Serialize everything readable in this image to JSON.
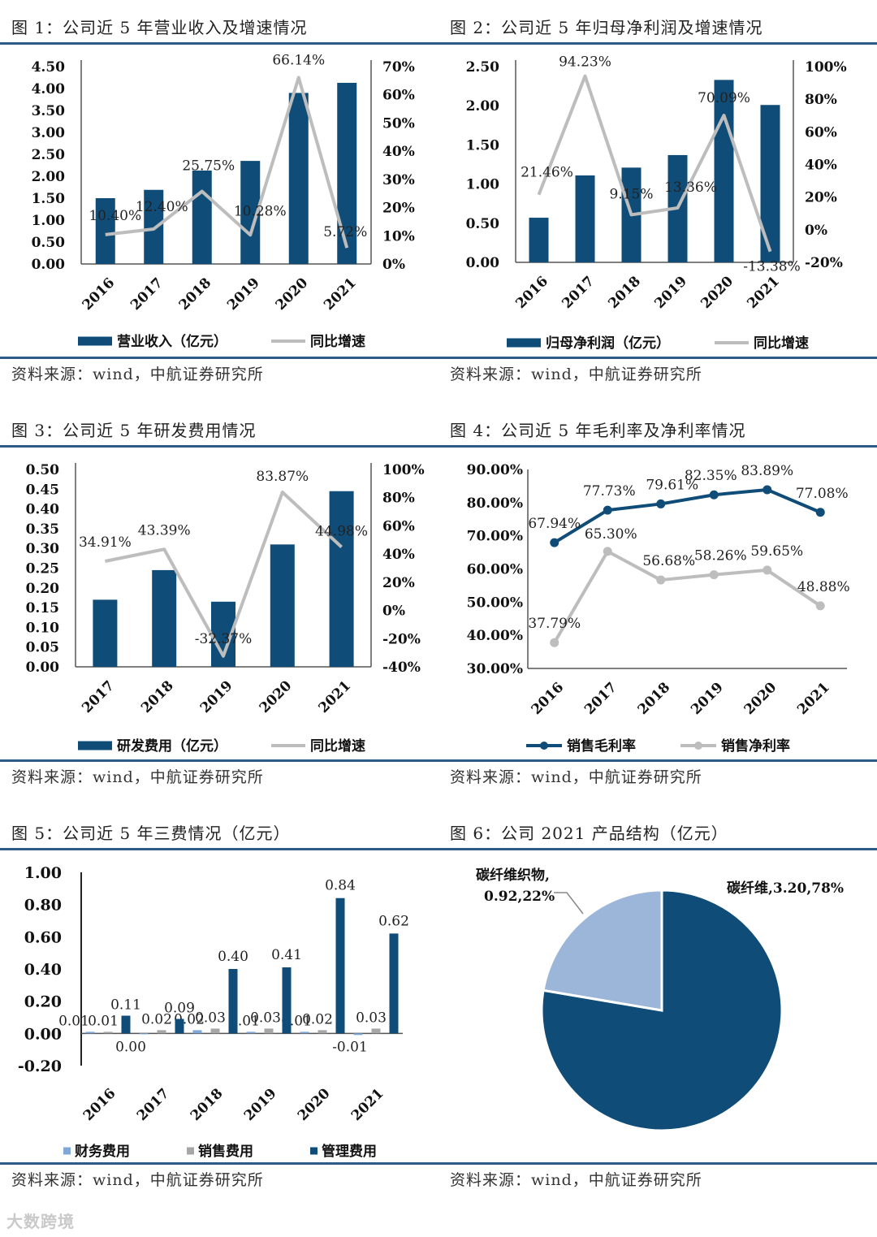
{
  "figures": [
    {
      "caption": "图 1：公司近 5 年营业收入及增速情况",
      "source": "资料来源：wind，中航证券研究所"
    },
    {
      "caption": "图 2：公司近 5 年归母净利润及增速情况",
      "source": "资料来源：wind，中航证券研究所"
    },
    {
      "caption": "图 3：公司近 5 年研发费用情况",
      "source": "资料来源：wind，中航证券研究所"
    },
    {
      "caption": "图 4：公司近 5 年毛利率及净利率情况",
      "source": "资料来源：wind，中航证券研究所"
    },
    {
      "caption": "图 5：公司近 5 年三费情况（亿元）",
      "source": "资料来源：wind，中航证券研究所"
    },
    {
      "caption": "图 6：公司 2021 产品结构（亿元）",
      "source": "资料来源：wind，中航证券研究所"
    }
  ],
  "watermark": "大数跨境",
  "colors": {
    "bar": "#0f4c77",
    "line": "#bdbdbd",
    "gray": "#a6a6a6",
    "light": "#7fa8d6",
    "pieLight": "#9bb6d8",
    "rule": "#2d5b86"
  },
  "chart_data": [
    {
      "type": "bar+line",
      "categories": [
        "2016",
        "2017",
        "2018",
        "2019",
        "2020",
        "2021"
      ],
      "series": [
        {
          "name": "营业收入（亿元）",
          "kind": "bar",
          "axis": "left",
          "values": [
            1.5,
            1.69,
            2.13,
            2.35,
            3.9,
            4.13
          ]
        },
        {
          "name": "同比增速",
          "kind": "line",
          "axis": "right",
          "values": [
            10.4,
            12.4,
            25.75,
            10.28,
            66.14,
            5.72
          ],
          "labels": [
            "10.40%",
            "12.40%",
            "25.75%",
            "10.28%",
            "66.14%",
            "5.72%"
          ]
        }
      ],
      "leftAxis": {
        "min": 0,
        "max": 4.5,
        "step": 0.5,
        "ticks": [
          "0.00",
          "0.50",
          "1.00",
          "1.50",
          "2.00",
          "2.50",
          "3.00",
          "3.50",
          "4.00",
          "4.50"
        ]
      },
      "rightAxis": {
        "min": 0,
        "max": 70,
        "step": 10,
        "ticks": [
          "0%",
          "10%",
          "20%",
          "30%",
          "40%",
          "50%",
          "60%",
          "70%"
        ]
      },
      "legend": [
        "营业收入（亿元）",
        "同比增速"
      ]
    },
    {
      "type": "bar+line",
      "categories": [
        "2016",
        "2017",
        "2018",
        "2019",
        "2020",
        "2021"
      ],
      "series": [
        {
          "name": "归母净利润（亿元）",
          "kind": "bar",
          "axis": "left",
          "values": [
            0.57,
            1.11,
            1.21,
            1.37,
            2.33,
            2.01
          ]
        },
        {
          "name": "同比增速",
          "kind": "line",
          "axis": "right",
          "values": [
            21.46,
            94.23,
            9.15,
            13.36,
            70.09,
            -13.38
          ],
          "labels": [
            "21.46%",
            "94.23%",
            "9.15%",
            "13.36%",
            "70.09%",
            "-13.38%"
          ]
        }
      ],
      "leftAxis": {
        "min": 0,
        "max": 2.5,
        "step": 0.5,
        "ticks": [
          "0.00",
          "0.50",
          "1.00",
          "1.50",
          "2.00",
          "2.50"
        ]
      },
      "rightAxis": {
        "min": -20,
        "max": 100,
        "step": 20,
        "ticks": [
          "-20%",
          "0%",
          "20%",
          "40%",
          "60%",
          "80%",
          "100%"
        ]
      },
      "legend": [
        "归母净利润（亿元）",
        "同比增速"
      ]
    },
    {
      "type": "bar+line",
      "categories": [
        "2017",
        "2018",
        "2019",
        "2020",
        "2021"
      ],
      "series": [
        {
          "name": "研发费用（亿元）",
          "kind": "bar",
          "axis": "left",
          "values": [
            0.17,
            0.245,
            0.165,
            0.31,
            0.445
          ]
        },
        {
          "name": "同比增速",
          "kind": "line",
          "axis": "right",
          "values": [
            34.91,
            43.39,
            -32.37,
            83.87,
            44.98
          ],
          "labels": [
            "34.91%",
            "43.39%",
            "-32.37%",
            "83.87%",
            "44.98%"
          ]
        }
      ],
      "leftAxis": {
        "min": 0,
        "max": 0.5,
        "step": 0.05,
        "ticks": [
          "0.00",
          "0.05",
          "0.10",
          "0.15",
          "0.20",
          "0.25",
          "0.30",
          "0.35",
          "0.40",
          "0.45",
          "0.50"
        ]
      },
      "rightAxis": {
        "min": -40,
        "max": 100,
        "step": 20,
        "ticks": [
          "-40%",
          "-20%",
          "0%",
          "20%",
          "40%",
          "60%",
          "80%",
          "100%"
        ]
      },
      "legend": [
        "研发费用（亿元）",
        "同比增速"
      ]
    },
    {
      "type": "line",
      "categories": [
        "2016",
        "2017",
        "2018",
        "2019",
        "2020",
        "2021"
      ],
      "series": [
        {
          "name": "销售毛利率",
          "values": [
            67.94,
            77.73,
            79.61,
            82.35,
            83.89,
            77.08
          ],
          "labels": [
            "67.94%",
            "77.73%",
            "79.61%",
            "82.35%",
            "83.89%",
            "77.08%"
          ]
        },
        {
          "name": "销售净利率",
          "values": [
            37.79,
            65.3,
            56.68,
            58.26,
            59.65,
            48.88
          ],
          "labels": [
            "37.79%",
            "65.30%",
            "56.68%",
            "58.26%",
            "59.65%",
            "48.88%"
          ]
        }
      ],
      "leftAxis": {
        "min": 30,
        "max": 90,
        "step": 10,
        "ticks": [
          "30.00%",
          "40.00%",
          "50.00%",
          "60.00%",
          "70.00%",
          "80.00%",
          "90.00%"
        ]
      },
      "legend": [
        "销售毛利率",
        "销售净利率"
      ]
    },
    {
      "type": "bar",
      "categories": [
        "2016",
        "2017",
        "2018",
        "2019",
        "2020",
        "2021"
      ],
      "series": [
        {
          "name": "财务费用",
          "values": [
            0.01,
            0.0,
            0.02,
            0.01,
            0.01,
            -0.01
          ],
          "labels": [
            "0.01",
            "0.00",
            "0.02",
            "0.01",
            "0.01",
            "-0.01"
          ]
        },
        {
          "name": "销售费用",
          "values": [
            0.01,
            0.02,
            0.03,
            0.03,
            0.02,
            0.03
          ],
          "labels": [
            "0.01",
            "0.02",
            "0.03",
            "0.03",
            "0.02",
            "0.03"
          ]
        },
        {
          "name": "管理费用",
          "values": [
            0.11,
            0.09,
            0.4,
            0.41,
            0.84,
            0.62
          ],
          "labels": [
            "0.11",
            "0.09",
            "0.40",
            "0.41",
            "0.84",
            "0.62"
          ]
        }
      ],
      "leftAxis": {
        "min": -0.2,
        "max": 1.0,
        "step": 0.2,
        "ticks": [
          "-0.20",
          "0.00",
          "0.20",
          "0.40",
          "0.60",
          "0.80",
          "1.00"
        ]
      },
      "legend": [
        "财务费用",
        "销售费用",
        "管理费用"
      ]
    },
    {
      "type": "pie",
      "slices": [
        {
          "name": "碳纤维",
          "value": 3.2,
          "percent": 78,
          "label": "碳纤维,3.20,78%"
        },
        {
          "name": "碳纤维织物",
          "value": 0.92,
          "percent": 22,
          "label1": "碳纤维织物,",
          "label2": "0.92,22%"
        }
      ]
    }
  ]
}
